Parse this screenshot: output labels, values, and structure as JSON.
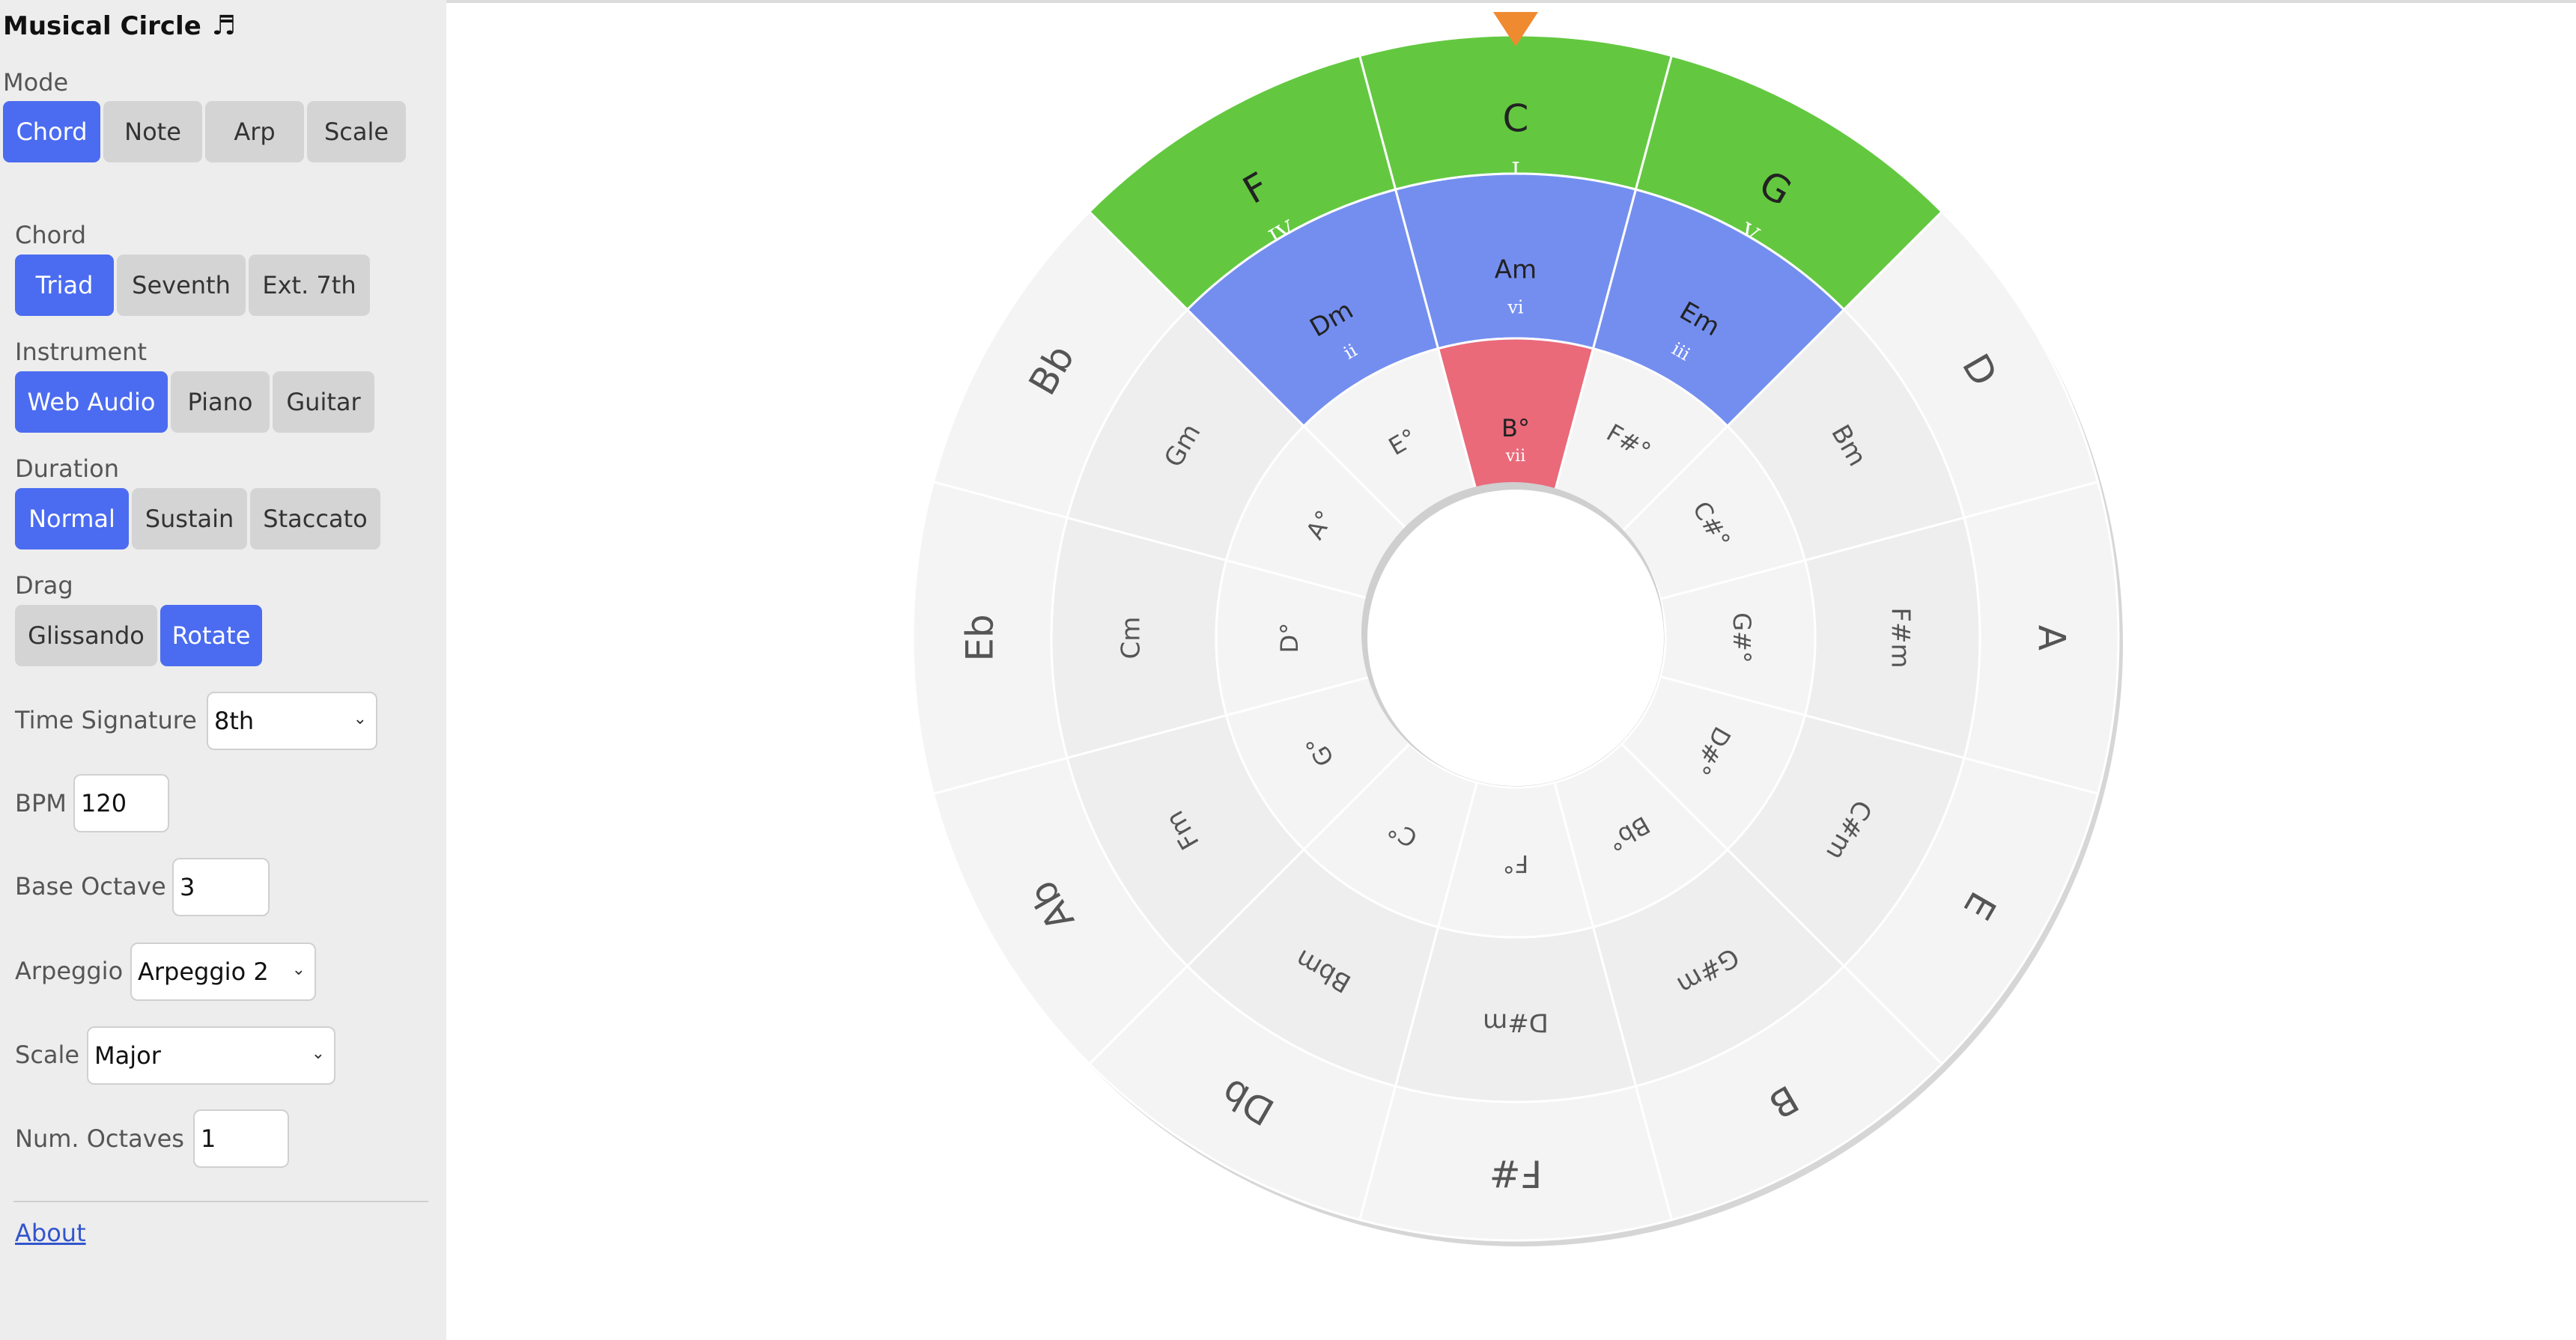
{
  "app": {
    "title": "Musical Circle",
    "title_icon": "♬"
  },
  "mode": {
    "label": "Mode",
    "options": [
      "Chord",
      "Note",
      "Arp",
      "Scale"
    ],
    "selected": "Chord"
  },
  "chord": {
    "label": "Chord",
    "options": [
      "Triad",
      "Seventh",
      "Ext. 7th"
    ],
    "selected": "Triad"
  },
  "instrument": {
    "label": "Instrument",
    "options": [
      "Web Audio",
      "Piano",
      "Guitar"
    ],
    "selected": "Web Audio"
  },
  "duration": {
    "label": "Duration",
    "options": [
      "Normal",
      "Sustain",
      "Staccato"
    ],
    "selected": "Normal"
  },
  "drag": {
    "label": "Drag",
    "options": [
      "Glissando",
      "Rotate"
    ],
    "selected": "Rotate"
  },
  "time_signature": {
    "label": "Time Signature",
    "value": "8th"
  },
  "bpm": {
    "label": "BPM",
    "value": "120"
  },
  "base_octave": {
    "label": "Base Octave",
    "value": "3"
  },
  "arpeggio": {
    "label": "Arpeggio",
    "value": "Arpeggio 2"
  },
  "scale": {
    "label": "Scale",
    "value": "Major"
  },
  "num_octaves": {
    "label": "Num. Octaves",
    "value": "1"
  },
  "about": {
    "label": "About"
  },
  "colors": {
    "sidebar_bg": "#ededed",
    "button_active": "#4b6cf0",
    "button_inactive": "#d4d4d4",
    "major_highlight": "#63c840",
    "minor_highlight": "#748ef0",
    "dim_highlight": "#ea6a7a",
    "ring_outer": "#f4f4f4",
    "ring_middle": "#eeeeee",
    "ring_inner": "#f4f4f4",
    "pointer": "#f08a30"
  },
  "circle": {
    "major": [
      "C",
      "G",
      "D",
      "A",
      "E",
      "B",
      "F#",
      "Db",
      "Ab",
      "Eb",
      "Bb",
      "F"
    ],
    "minor": [
      "Am",
      "Em",
      "Bm",
      "F#m",
      "C#m",
      "G#m",
      "D#m",
      "Bbm",
      "Fm",
      "Cm",
      "Gm",
      "Dm"
    ],
    "diminished": [
      "B°",
      "F#°",
      "C#°",
      "G#°",
      "D#°",
      "Bb°",
      "F°",
      "C°",
      "G°",
      "D°",
      "A°",
      "E°"
    ],
    "highlight": {
      "major": {
        "C": "I",
        "G": "V",
        "F": "IV"
      },
      "minor": {
        "Am": "vi",
        "Em": "iii",
        "Dm": "ii"
      },
      "diminished": {
        "B°": "vii"
      }
    }
  }
}
